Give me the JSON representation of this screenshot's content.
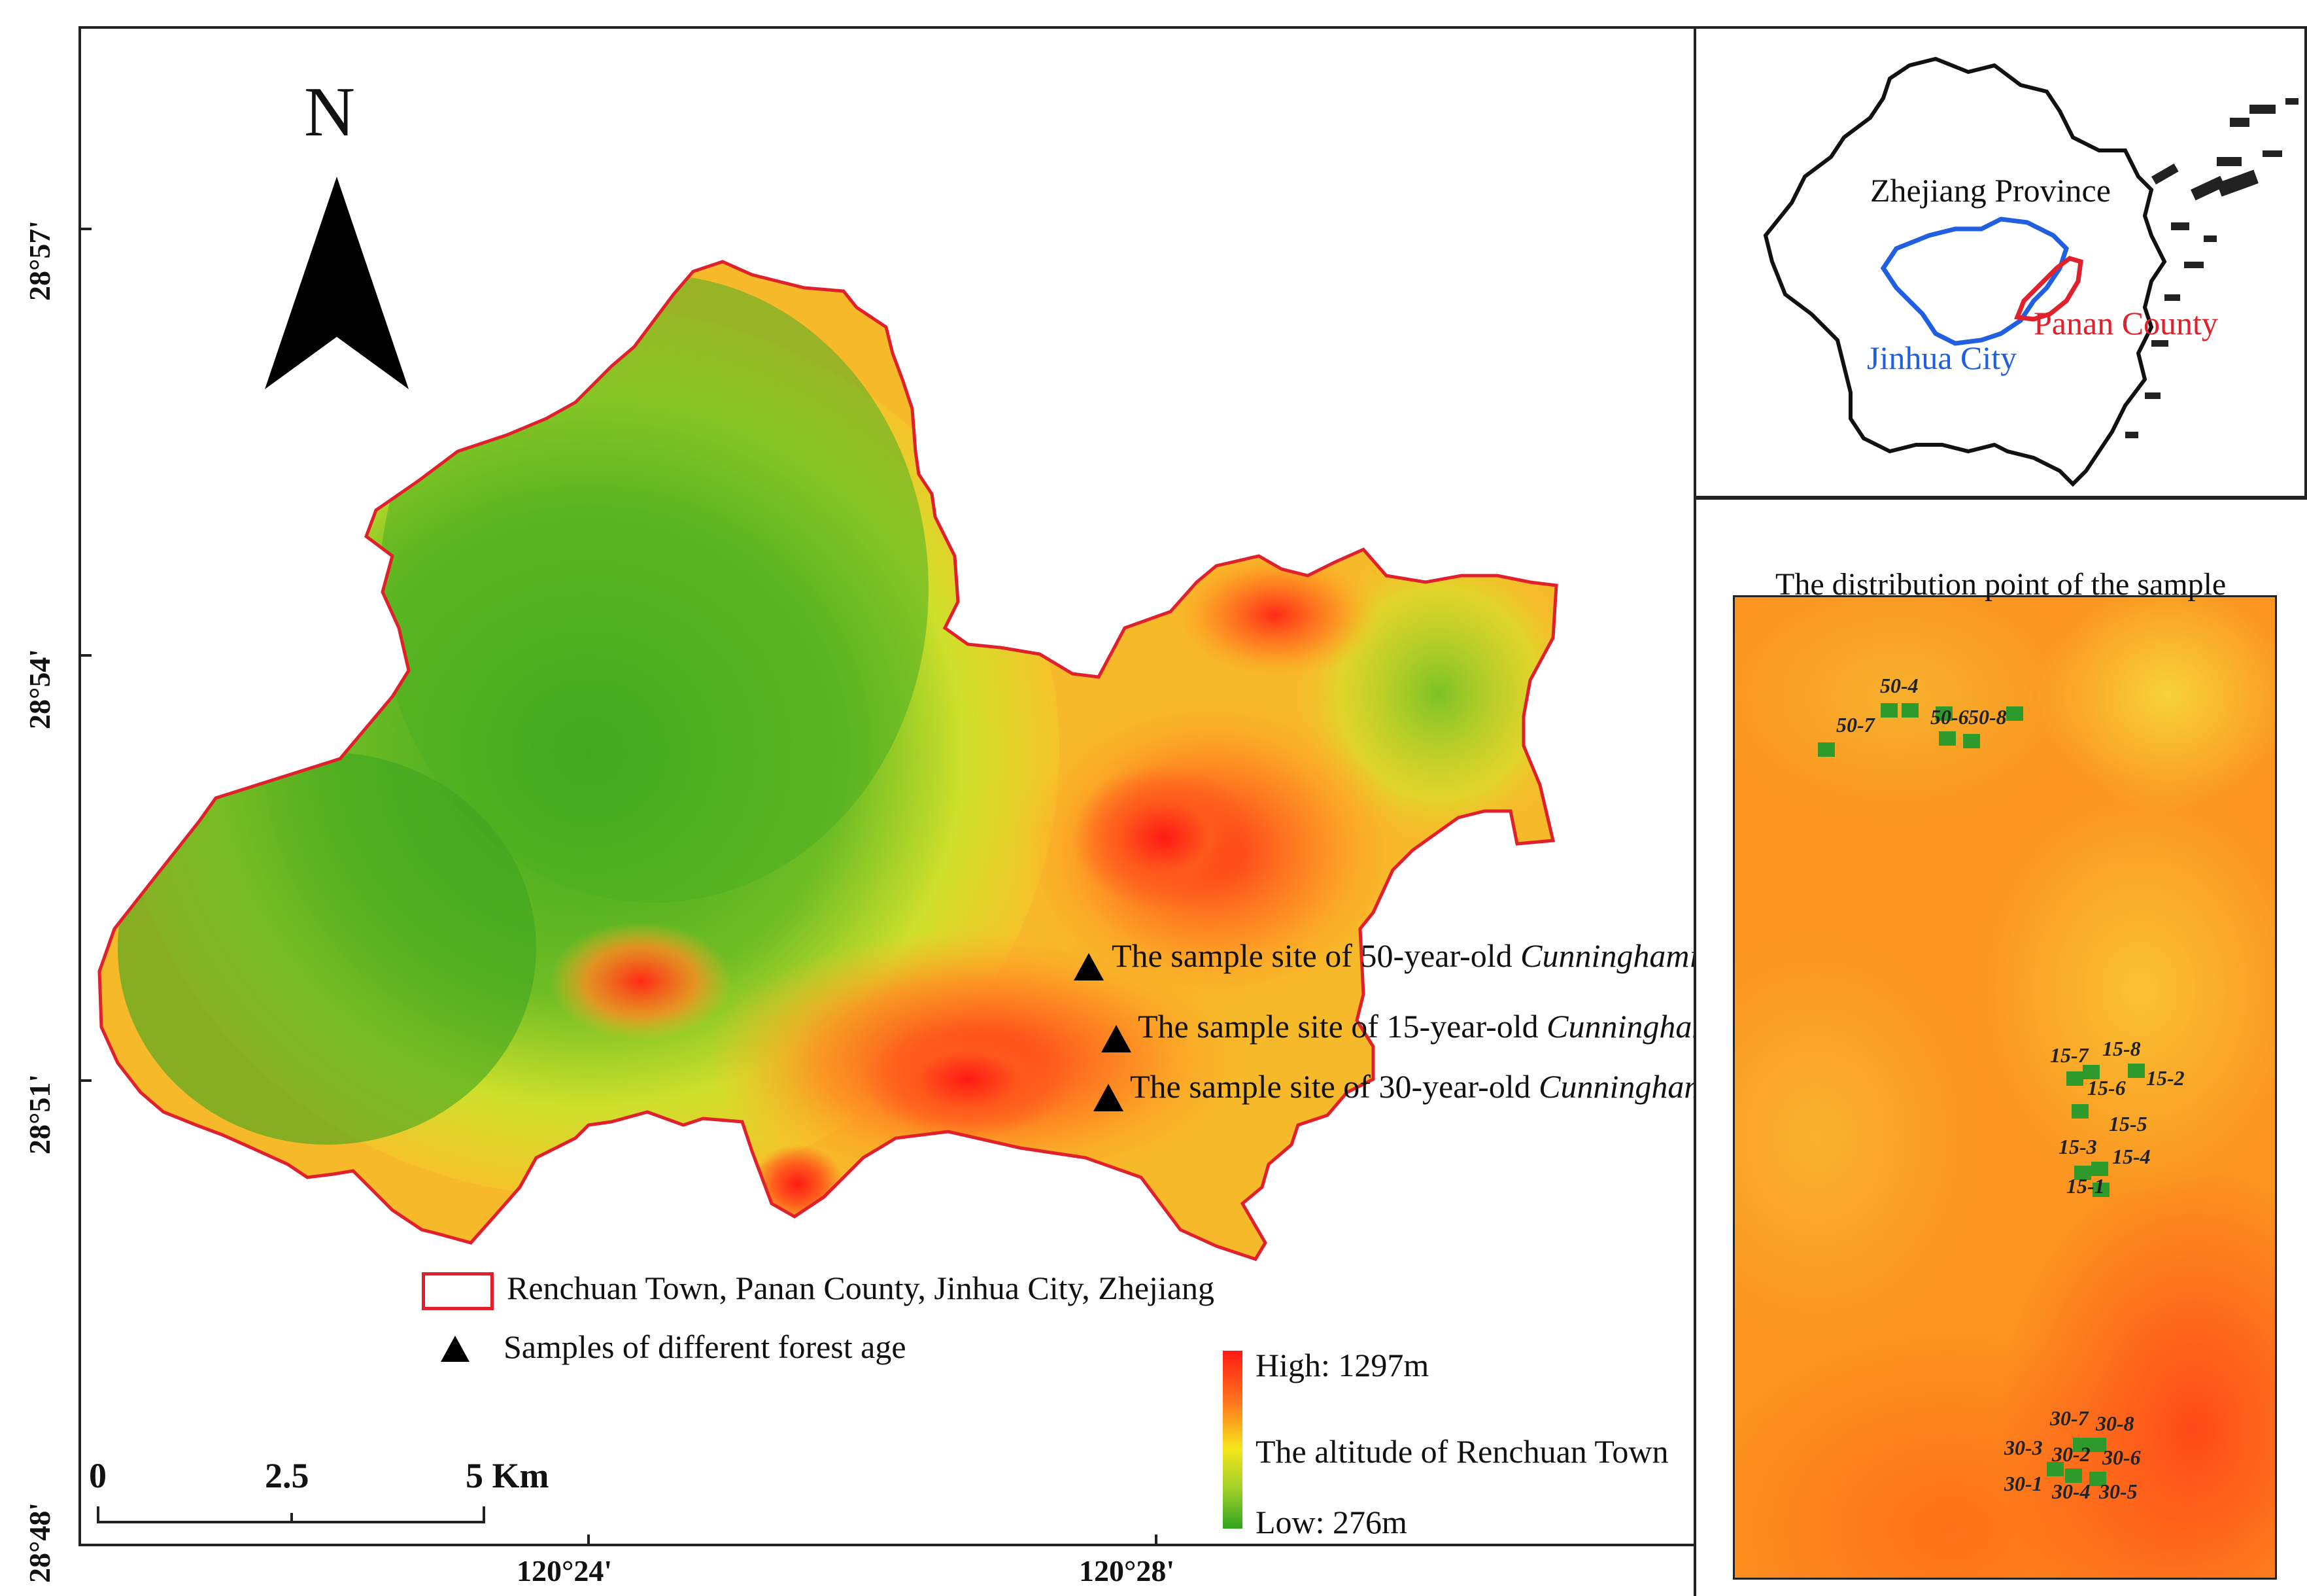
{
  "main_map": {
    "north_label": "N",
    "lat_ticks": [
      "28°57'",
      "28°54'",
      "28°51'",
      "28°48'"
    ],
    "lon_ticks": [
      "120°24'",
      "120°28'"
    ],
    "scale_labels": [
      "0",
      "2.5",
      "5 Km"
    ],
    "sites": {
      "site50": {
        "prefix": "The sample site of 50-year-old ",
        "species": "Cunninghamia lanceolata"
      },
      "site15": {
        "prefix": "The sample site of 15-year-old ",
        "species": "Cunninghamia lanceolata"
      },
      "site30": {
        "prefix": "The sample site of 30-year-old ",
        "species": "Cunninghamia lanceolata"
      }
    },
    "legend": {
      "boundary": "Renchuan Town, Panan County, Jinhua City, Zhejiang",
      "samples": "Samples of  different forest age",
      "altitude_high": "High: 1297m",
      "altitude_title": "The altitude of Renchuan Town",
      "altitude_low": "Low: 276m"
    },
    "colors": {
      "boundary": "#e0202a",
      "low": "#3aa81e",
      "mid": "#f6e51c",
      "high": "#ff1a14"
    }
  },
  "inset_map": {
    "province": "Zhejiang Province",
    "city": "Jinhua City",
    "county": "Panan County",
    "colors": {
      "city": "#1f5fe0",
      "county": "#e0202a",
      "province": "#111111"
    }
  },
  "distribution": {
    "title": "The distribution point of the sample",
    "points": [
      "50-4",
      "50-7",
      "50-6",
      "50-8",
      "15-7",
      "15-8",
      "15-6",
      "15-2",
      "15-5",
      "15-3",
      "15-4",
      "15-1",
      "30-7",
      "30-8",
      "30-3",
      "30-2",
      "30-6",
      "30-1",
      "30-4",
      "30-5"
    ],
    "point_color": "#2f9a2c"
  }
}
